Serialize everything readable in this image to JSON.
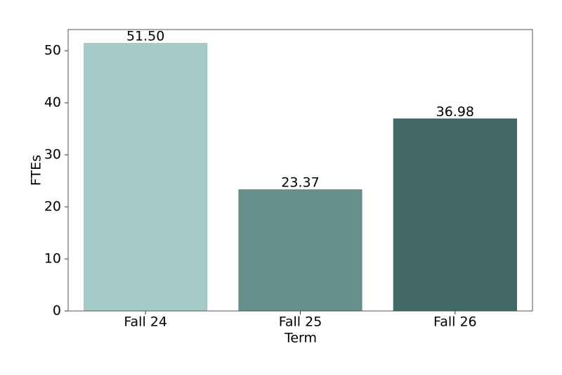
{
  "chart_data": {
    "type": "bar",
    "categories": [
      "Fall 24",
      "Fall 25",
      "Fall 26"
    ],
    "values": [
      51.5,
      23.37,
      36.98
    ],
    "value_labels": [
      "51.50",
      "23.37",
      "36.98"
    ],
    "colors": [
      "#a4cbc8",
      "#65908b",
      "#416864"
    ],
    "xlabel": "Term",
    "ylabel": "FTEs",
    "ylim": [
      0,
      54.07
    ],
    "yticks": [
      0,
      10,
      20,
      30,
      40,
      50
    ],
    "grid": false
  }
}
